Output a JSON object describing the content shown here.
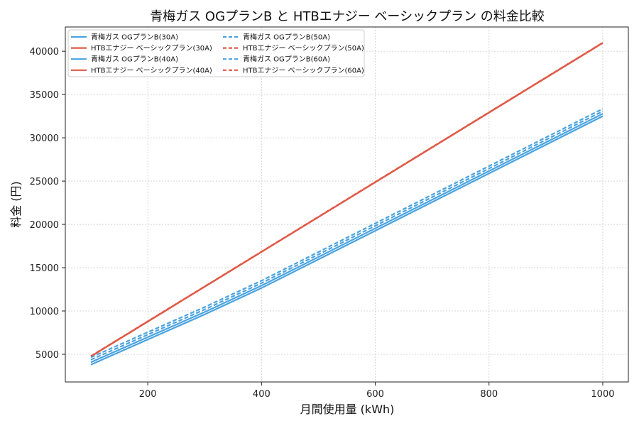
{
  "chart_data": {
    "type": "line",
    "title": "青梅ガス OGプランB と HTBエナジー ベーシックプラン の料金比較",
    "xlabel": "月間使用量 (kWh)",
    "ylabel": "料金 (円)",
    "xlim": [
      55,
      1045
    ],
    "ylim": [
      1800,
      42800
    ],
    "xticks": [
      200,
      400,
      600,
      800,
      1000
    ],
    "yticks": [
      5000,
      10000,
      15000,
      20000,
      25000,
      30000,
      35000,
      40000
    ],
    "grid": true,
    "legend_position": "top-left",
    "legend_columns": 2,
    "colors": {
      "ome": "#4aa3df",
      "htb": "#e05a47"
    },
    "series": [
      {
        "name": "青梅ガス OGプランB(30A)",
        "color": "#4aa3df",
        "style": "solid",
        "x": [
          100,
          120,
          300,
          400,
          1000
        ],
        "y": [
          3800,
          4380,
          9600,
          12650,
          32500
        ]
      },
      {
        "name": "HTBエナジー ベーシックプラン(30A)",
        "color": "#e05a47",
        "style": "solid",
        "x": [
          100,
          1000
        ],
        "y": [
          4750,
          40950
        ]
      },
      {
        "name": "青梅ガス OGプランB(40A)",
        "color": "#4aa3df",
        "style": "solid",
        "x": [
          100,
          120,
          300,
          400,
          1000
        ],
        "y": [
          4080,
          4660,
          9880,
          12930,
          32780
        ]
      },
      {
        "name": "HTBエナジー ベーシックプラン(40A)",
        "color": "#e05a47",
        "style": "solid",
        "x": [
          100,
          1000
        ],
        "y": [
          4770,
          40970
        ]
      },
      {
        "name": "青梅ガス OGプランB(50A)",
        "color": "#4aa3df",
        "style": "dashed",
        "x": [
          100,
          120,
          300,
          400,
          1000
        ],
        "y": [
          4370,
          4950,
          10170,
          13220,
          33070
        ]
      },
      {
        "name": "HTBエナジー ベーシックプラン(50A)",
        "color": "#e05a47",
        "style": "dashed",
        "x": [
          100,
          1000
        ],
        "y": [
          4780,
          40980
        ]
      },
      {
        "name": "青梅ガス OGプランB(60A)",
        "color": "#4aa3df",
        "style": "dashed",
        "x": [
          100,
          120,
          300,
          400,
          1000
        ],
        "y": [
          4650,
          5230,
          10450,
          13500,
          33350
        ]
      },
      {
        "name": "HTBエナジー ベーシックプラン(60A)",
        "color": "#e05a47",
        "style": "dashed",
        "x": [
          100,
          1000
        ],
        "y": [
          4790,
          40990
        ]
      }
    ]
  }
}
